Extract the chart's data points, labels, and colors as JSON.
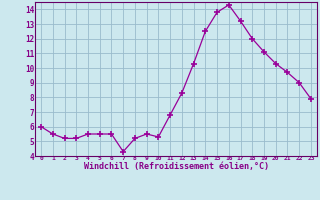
{
  "x": [
    0,
    1,
    2,
    3,
    4,
    5,
    6,
    7,
    8,
    9,
    10,
    11,
    12,
    13,
    14,
    15,
    16,
    17,
    18,
    19,
    20,
    21,
    22,
    23
  ],
  "y": [
    6.0,
    5.5,
    5.2,
    5.2,
    5.5,
    5.5,
    5.5,
    4.3,
    5.2,
    5.5,
    5.3,
    6.8,
    8.3,
    10.3,
    12.5,
    13.8,
    14.3,
    13.2,
    12.0,
    11.1,
    10.3,
    9.7,
    9.0,
    7.9
  ],
  "xlabel": "Windchill (Refroidissement éolien,°C)",
  "ylim": [
    4,
    14.5
  ],
  "yticks": [
    4,
    5,
    6,
    7,
    8,
    9,
    10,
    11,
    12,
    13,
    14
  ],
  "xtick_labels": [
    "0",
    "1",
    "2",
    "3",
    "4",
    "5",
    "6",
    "7",
    "8",
    "9",
    "10",
    "11",
    "12",
    "13",
    "14",
    "15",
    "16",
    "17",
    "18",
    "19",
    "20",
    "21",
    "22",
    "23"
  ],
  "line_color": "#990099",
  "marker_color": "#990099",
  "bg_color": "#cce8ee",
  "grid_color": "#99bbcc",
  "spine_color": "#660066",
  "tick_color": "#880088",
  "label_color": "#880088"
}
